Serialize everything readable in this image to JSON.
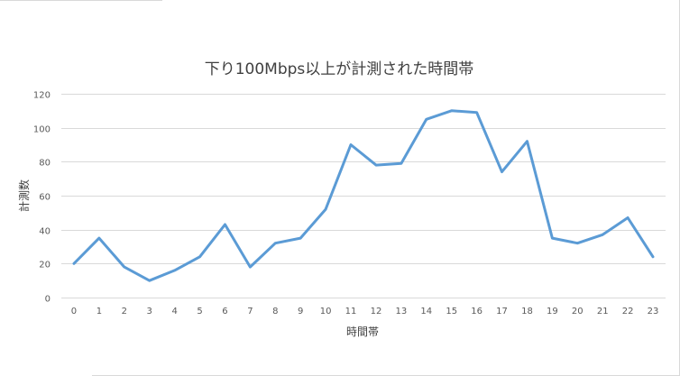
{
  "chart_data": {
    "type": "line",
    "title": "下り100Mbps以上が計測された時間帯",
    "xlabel": "時間帯",
    "ylabel": "計測数",
    "categories": [
      "0",
      "1",
      "2",
      "3",
      "4",
      "5",
      "6",
      "7",
      "8",
      "9",
      "10",
      "11",
      "12",
      "13",
      "14",
      "15",
      "16",
      "17",
      "18",
      "19",
      "20",
      "21",
      "22",
      "23"
    ],
    "series": [
      {
        "values": [
          20,
          35,
          18,
          10,
          16,
          24,
          43,
          18,
          32,
          35,
          52,
          90,
          78,
          79,
          105,
          110,
          109,
          74,
          92,
          35,
          32,
          37,
          47,
          24
        ]
      }
    ],
    "yticks": [
      "0",
      "20",
      "40",
      "60",
      "80",
      "100",
      "120"
    ],
    "ylim": [
      0,
      120
    ],
    "grid": true,
    "legend": "none",
    "colors": {
      "line": "#5b9bd5",
      "grid": "#d9d9d9",
      "axis": "#d9d9d9"
    }
  }
}
